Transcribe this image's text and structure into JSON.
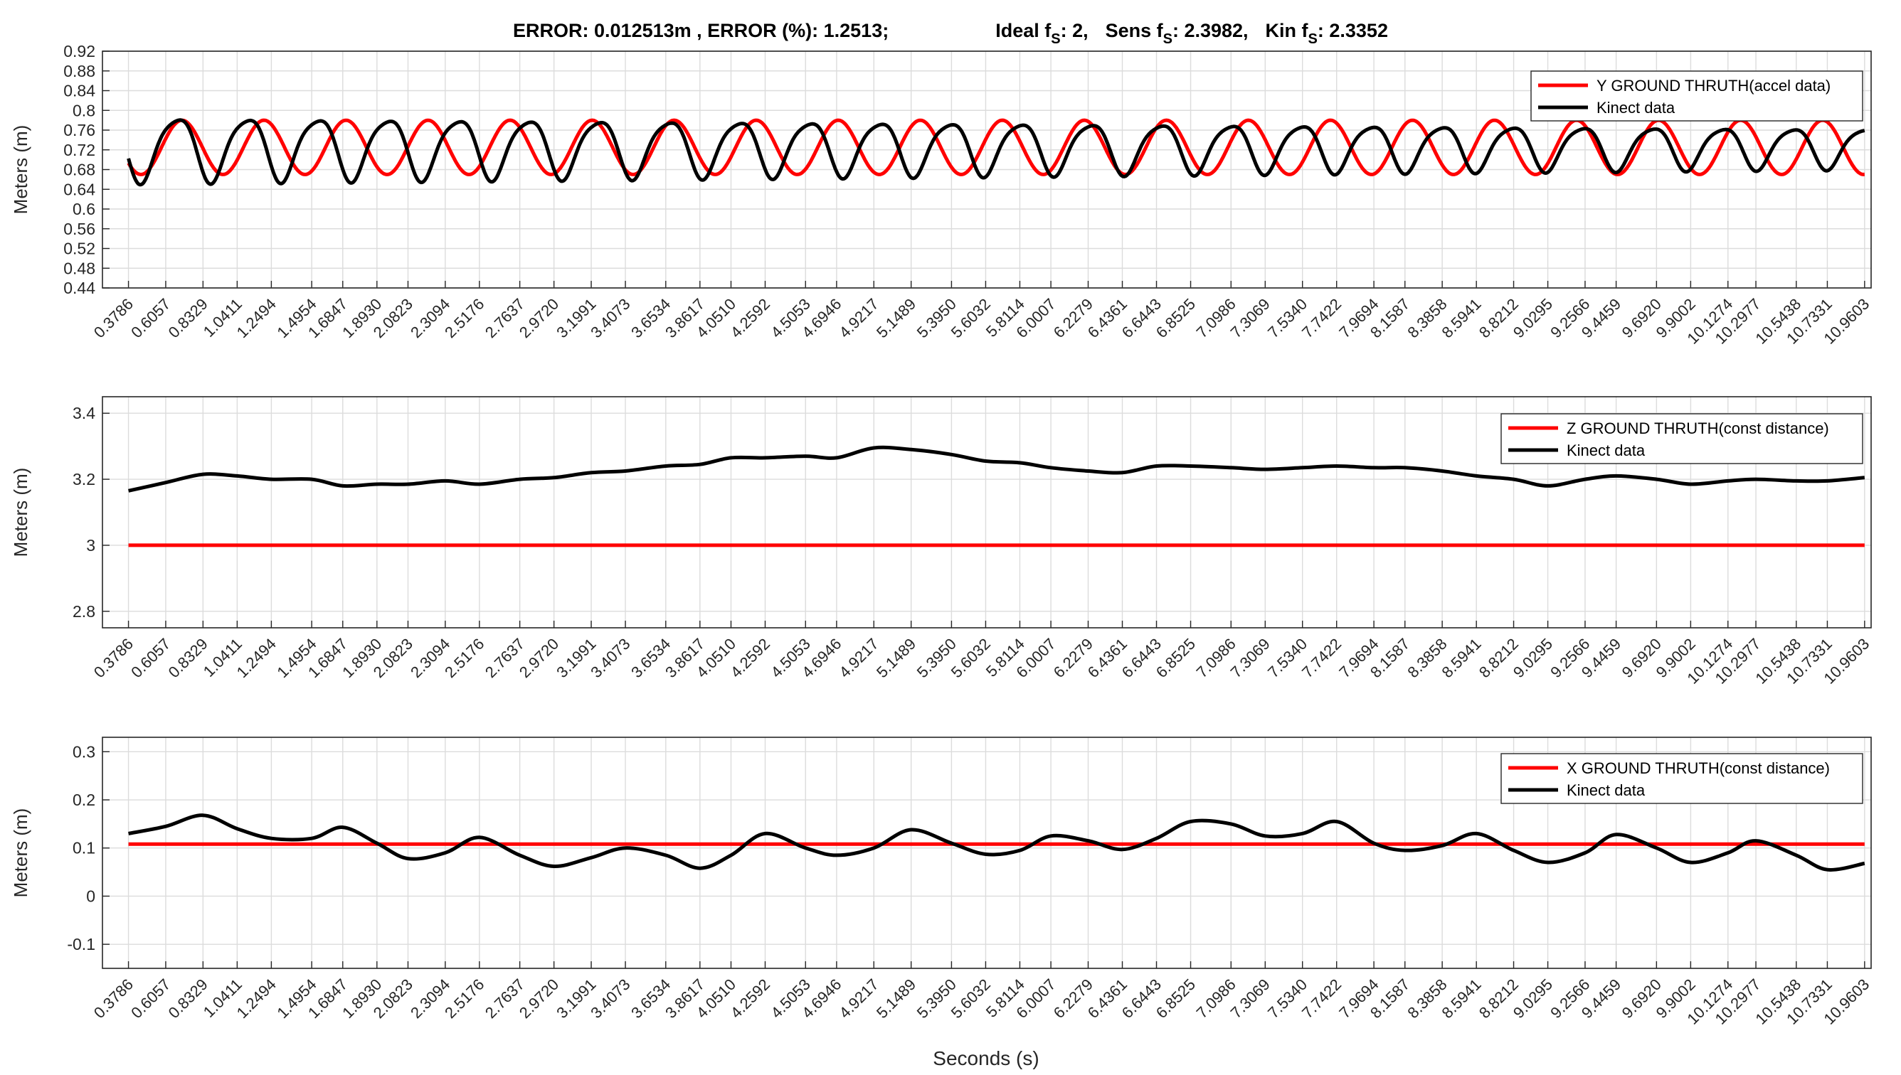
{
  "figure": {
    "title_parts": {
      "error": "ERROR: 0.012513m , ERROR (%): 1.2513;",
      "ideal_prefix": "Ideal f",
      "ideal_sub": "S",
      "ideal_value": ": 2,",
      "sens_prefix": "Sens f",
      "sens_sub": "S",
      "sens_value": ": 2.3982,",
      "kin_prefix": "Kin f",
      "kin_sub": "S",
      "kin_value": ": 2.3352"
    },
    "xlabel": "Seconds (s)",
    "colors": {
      "ground_truth": "#ff0000",
      "kinect": "#000000",
      "grid": "#dcdcdc",
      "axis": "#262626"
    }
  },
  "chart_data": [
    {
      "type": "line",
      "ylabel": "Meters (m)",
      "ylim": [
        0.44,
        0.92
      ],
      "yticks": [
        "0.44",
        "0.48",
        "0.52",
        "0.56",
        "0.6",
        "0.64",
        "0.68",
        "0.72",
        "0.76",
        "0.8",
        "0.84",
        "0.88",
        "0.92"
      ],
      "grid": true,
      "legend_position": "top-right",
      "series": [
        {
          "name": "Y GROUND THRUTH(accel data)",
          "kind": "sine",
          "mean": 0.725,
          "amp": 0.055,
          "freq": 2.0,
          "phase": -1.0
        },
        {
          "name": "Kinect data",
          "kind": "sine_var",
          "mean": 0.725,
          "amp_start": 0.065,
          "amp_end": 0.04,
          "freq": 2.3352,
          "phase": -2.0
        }
      ]
    },
    {
      "type": "line",
      "ylabel": "Meters (m)",
      "ylim": [
        2.75,
        3.45
      ],
      "yticks": [
        "2.8",
        "3",
        "3.2",
        "3.4"
      ],
      "grid": true,
      "legend_position": "top-right",
      "series": [
        {
          "name": "Z GROUND THRUTH(const distance)",
          "kind": "const",
          "value": 3.0
        },
        {
          "name": "Kinect data",
          "kind": "points",
          "x": [
            0.3786,
            0.6057,
            0.8329,
            1.0411,
            1.2494,
            1.4954,
            1.6847,
            1.893,
            2.0823,
            2.3094,
            2.5176,
            2.7637,
            2.972,
            3.1991,
            3.4073,
            3.6534,
            3.8617,
            4.051,
            4.2592,
            4.5053,
            4.6946,
            4.9217,
            5.1489,
            5.395,
            5.6032,
            5.8114,
            6.0007,
            6.2279,
            6.4361,
            6.6443,
            6.8525,
            7.0986,
            7.3069,
            7.534,
            7.7422,
            7.9694,
            8.1587,
            8.3858,
            8.5941,
            8.8212,
            9.0295,
            9.2566,
            9.4459,
            9.692,
            9.9002,
            10.1274,
            10.2977,
            10.5438,
            10.7331,
            10.9603
          ],
          "y": [
            3.165,
            3.19,
            3.215,
            3.21,
            3.2,
            3.2,
            3.18,
            3.185,
            3.185,
            3.195,
            3.185,
            3.2,
            3.205,
            3.22,
            3.225,
            3.24,
            3.245,
            3.265,
            3.265,
            3.27,
            3.265,
            3.295,
            3.29,
            3.275,
            3.255,
            3.25,
            3.235,
            3.225,
            3.22,
            3.24,
            3.24,
            3.235,
            3.23,
            3.235,
            3.24,
            3.235,
            3.235,
            3.225,
            3.21,
            3.2,
            3.18,
            3.2,
            3.21,
            3.2,
            3.185,
            3.195,
            3.2,
            3.195,
            3.195,
            3.205
          ]
        }
      ]
    },
    {
      "type": "line",
      "ylabel": "Meters (m)",
      "xlabel": "Seconds (s)",
      "ylim": [
        -0.15,
        0.33
      ],
      "yticks": [
        "-0.1",
        "0",
        "0.1",
        "0.2",
        "0.3"
      ],
      "grid": true,
      "legend_position": "top-right",
      "series": [
        {
          "name": "X GROUND THRUTH(const distance)",
          "kind": "const",
          "value": 0.108
        },
        {
          "name": "Kinect data",
          "kind": "points",
          "x": [
            0.3786,
            0.6057,
            0.8329,
            1.0411,
            1.2494,
            1.4954,
            1.6847,
            1.893,
            2.0823,
            2.3094,
            2.5176,
            2.7637,
            2.972,
            3.1991,
            3.4073,
            3.6534,
            3.8617,
            4.051,
            4.2592,
            4.5053,
            4.6946,
            4.9217,
            5.1489,
            5.395,
            5.6032,
            5.8114,
            6.0007,
            6.2279,
            6.4361,
            6.6443,
            6.8525,
            7.0986,
            7.3069,
            7.534,
            7.7422,
            7.9694,
            8.1587,
            8.3858,
            8.5941,
            8.8212,
            9.0295,
            9.2566,
            9.4459,
            9.692,
            9.9002,
            10.1274,
            10.2977,
            10.5438,
            10.7331,
            10.9603
          ],
          "y": [
            0.13,
            0.145,
            0.168,
            0.14,
            0.12,
            0.12,
            0.143,
            0.11,
            0.078,
            0.09,
            0.122,
            0.085,
            0.062,
            0.08,
            0.1,
            0.085,
            0.058,
            0.085,
            0.13,
            0.1,
            0.085,
            0.1,
            0.138,
            0.11,
            0.087,
            0.095,
            0.125,
            0.115,
            0.097,
            0.12,
            0.155,
            0.15,
            0.125,
            0.13,
            0.155,
            0.11,
            0.095,
            0.105,
            0.13,
            0.095,
            0.07,
            0.09,
            0.128,
            0.1,
            0.07,
            0.09,
            0.115,
            0.085,
            0.055,
            0.068
          ]
        }
      ]
    }
  ],
  "xticks": [
    "0.3786",
    "0.6057",
    "0.8329",
    "1.0411",
    "1.2494",
    "1.4954",
    "1.6847",
    "1.8930",
    "2.0823",
    "2.3094",
    "2.5176",
    "2.7637",
    "2.9720",
    "3.1991",
    "3.4073",
    "3.6534",
    "3.8617",
    "4.0510",
    "4.2592",
    "4.5053",
    "4.6946",
    "4.9217",
    "5.1489",
    "5.3950",
    "5.6032",
    "5.8114",
    "6.0007",
    "6.2279",
    "6.4361",
    "6.6443",
    "6.8525",
    "7.0986",
    "7.3069",
    "7.5340",
    "7.7422",
    "7.9694",
    "8.1587",
    "8.3858",
    "8.5941",
    "8.8212",
    "9.0295",
    "9.2566",
    "9.4459",
    "9.6920",
    "9.9002",
    "10.1274",
    "10.2977",
    "10.5438",
    "10.7331",
    "10.9603"
  ],
  "xlim": [
    0.22,
    11.0
  ]
}
